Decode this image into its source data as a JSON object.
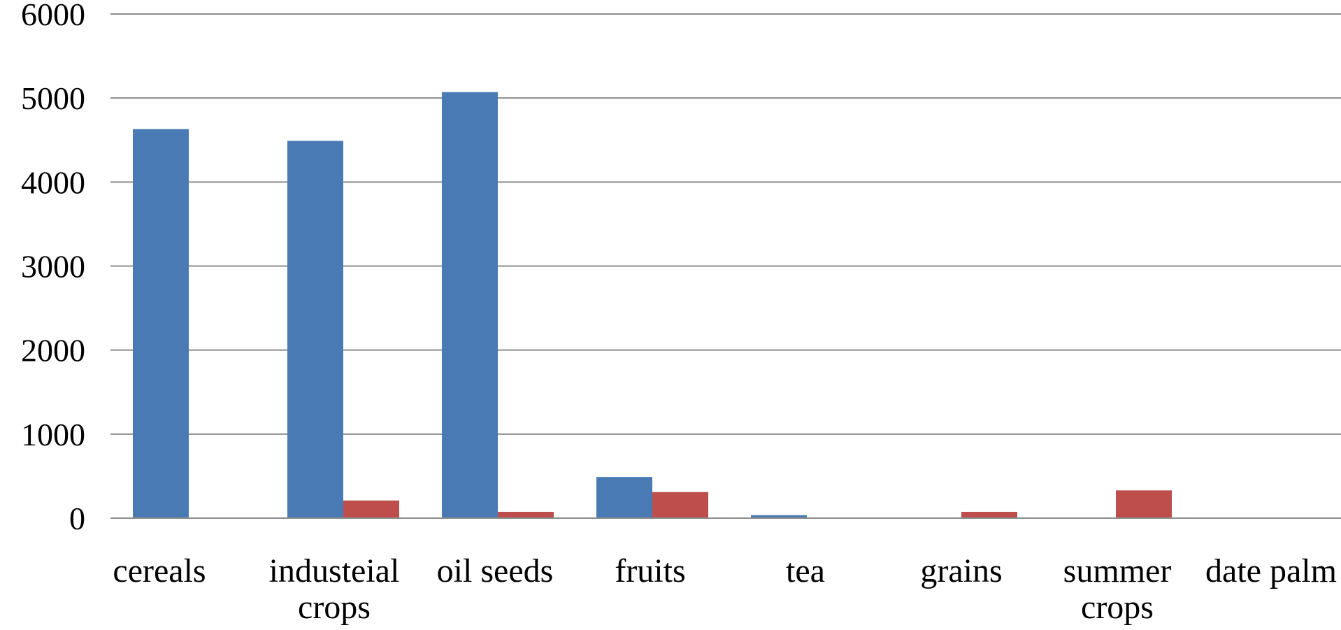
{
  "chart_data": {
    "type": "bar",
    "categories": [
      [
        "cereals"
      ],
      [
        "industeial",
        "crops"
      ],
      [
        "oil seeds"
      ],
      [
        "fruits"
      ],
      [
        "tea"
      ],
      [
        "grains"
      ],
      [
        "summer",
        "crops"
      ],
      [
        "date palm"
      ]
    ],
    "series": [
      {
        "color": "#4a7ab3",
        "values": [
          4630,
          4490,
          5070,
          490,
          35,
          0,
          0,
          0
        ]
      },
      {
        "color": "#bd4e4c",
        "values": [
          0,
          210,
          75,
          310,
          0,
          75,
          330,
          0
        ]
      }
    ],
    "ylim": [
      0,
      6000
    ],
    "yticks": [
      "0",
      "1000",
      "2000",
      "3000",
      "4000",
      "5000",
      "6000"
    ],
    "grid": true,
    "title": "",
    "xlabel": "",
    "ylabel": ""
  }
}
